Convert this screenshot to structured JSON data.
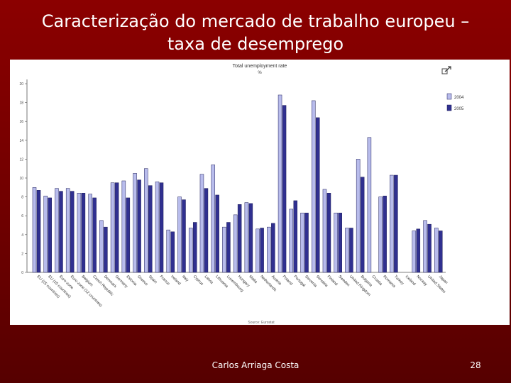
{
  "slide": {
    "title_line1": "Caracterização do mercado de trabalho europeu –",
    "title_line2": "taxa de desemprego",
    "author": "Carlos Arriaga Costa",
    "page_number": "28"
  },
  "chart_data": {
    "type": "bar",
    "title": "Total unemployment rate",
    "subtitle": "%",
    "source": "Source: Eurostat",
    "ylim": [
      0,
      20
    ],
    "yticks": [
      "0",
      "2",
      "4",
      "6",
      "8",
      "10",
      "12",
      "14",
      "16",
      "18",
      "20"
    ],
    "grid": false,
    "legend_position": "right",
    "categories": [
      "EU (25 countries)",
      "EU (15 countries)",
      "Euro-zone",
      "Euro-zone (12 countries)",
      "Belgium",
      "Czech Republic",
      "Denmark",
      "Germany",
      "Estonia",
      "Greece",
      "Spain",
      "France",
      "Ireland",
      "Italy",
      "Cyprus",
      "Latvia",
      "Lithuania",
      "Luxembourg",
      "Hungary",
      "Malta",
      "Netherlands",
      "Austria",
      "Poland",
      "Portugal",
      "Slovenia",
      "Slovakia",
      "Finland",
      "Sweden",
      "United Kingdom",
      "Bulgaria",
      "Croatia",
      "Romania",
      "Turkey",
      "Iceland",
      "Norway",
      "United States",
      "Japan"
    ],
    "series": [
      {
        "name": "2004",
        "color": "#b8bcec",
        "values": [
          9.0,
          8.1,
          8.9,
          8.9,
          8.4,
          8.3,
          5.5,
          9.5,
          9.7,
          10.5,
          11.0,
          9.6,
          4.5,
          8.0,
          4.7,
          10.4,
          11.4,
          4.8,
          6.1,
          7.4,
          4.6,
          4.8,
          18.8,
          6.7,
          6.3,
          18.2,
          8.8,
          6.3,
          4.7,
          12.0,
          14.3,
          8.0,
          10.3,
          0.0,
          4.4,
          5.5,
          4.7
        ]
      },
      {
        "name": "2005",
        "color": "#303090",
        "values": [
          8.7,
          7.9,
          8.6,
          8.6,
          8.4,
          7.9,
          4.8,
          9.5,
          7.9,
          9.8,
          9.2,
          9.5,
          4.3,
          7.7,
          5.3,
          8.9,
          8.2,
          5.3,
          7.2,
          7.3,
          4.7,
          5.2,
          17.7,
          7.6,
          6.3,
          16.4,
          8.4,
          6.3,
          4.7,
          10.1,
          0.0,
          8.1,
          10.3,
          0.0,
          4.6,
          5.1,
          4.4
        ]
      }
    ]
  }
}
